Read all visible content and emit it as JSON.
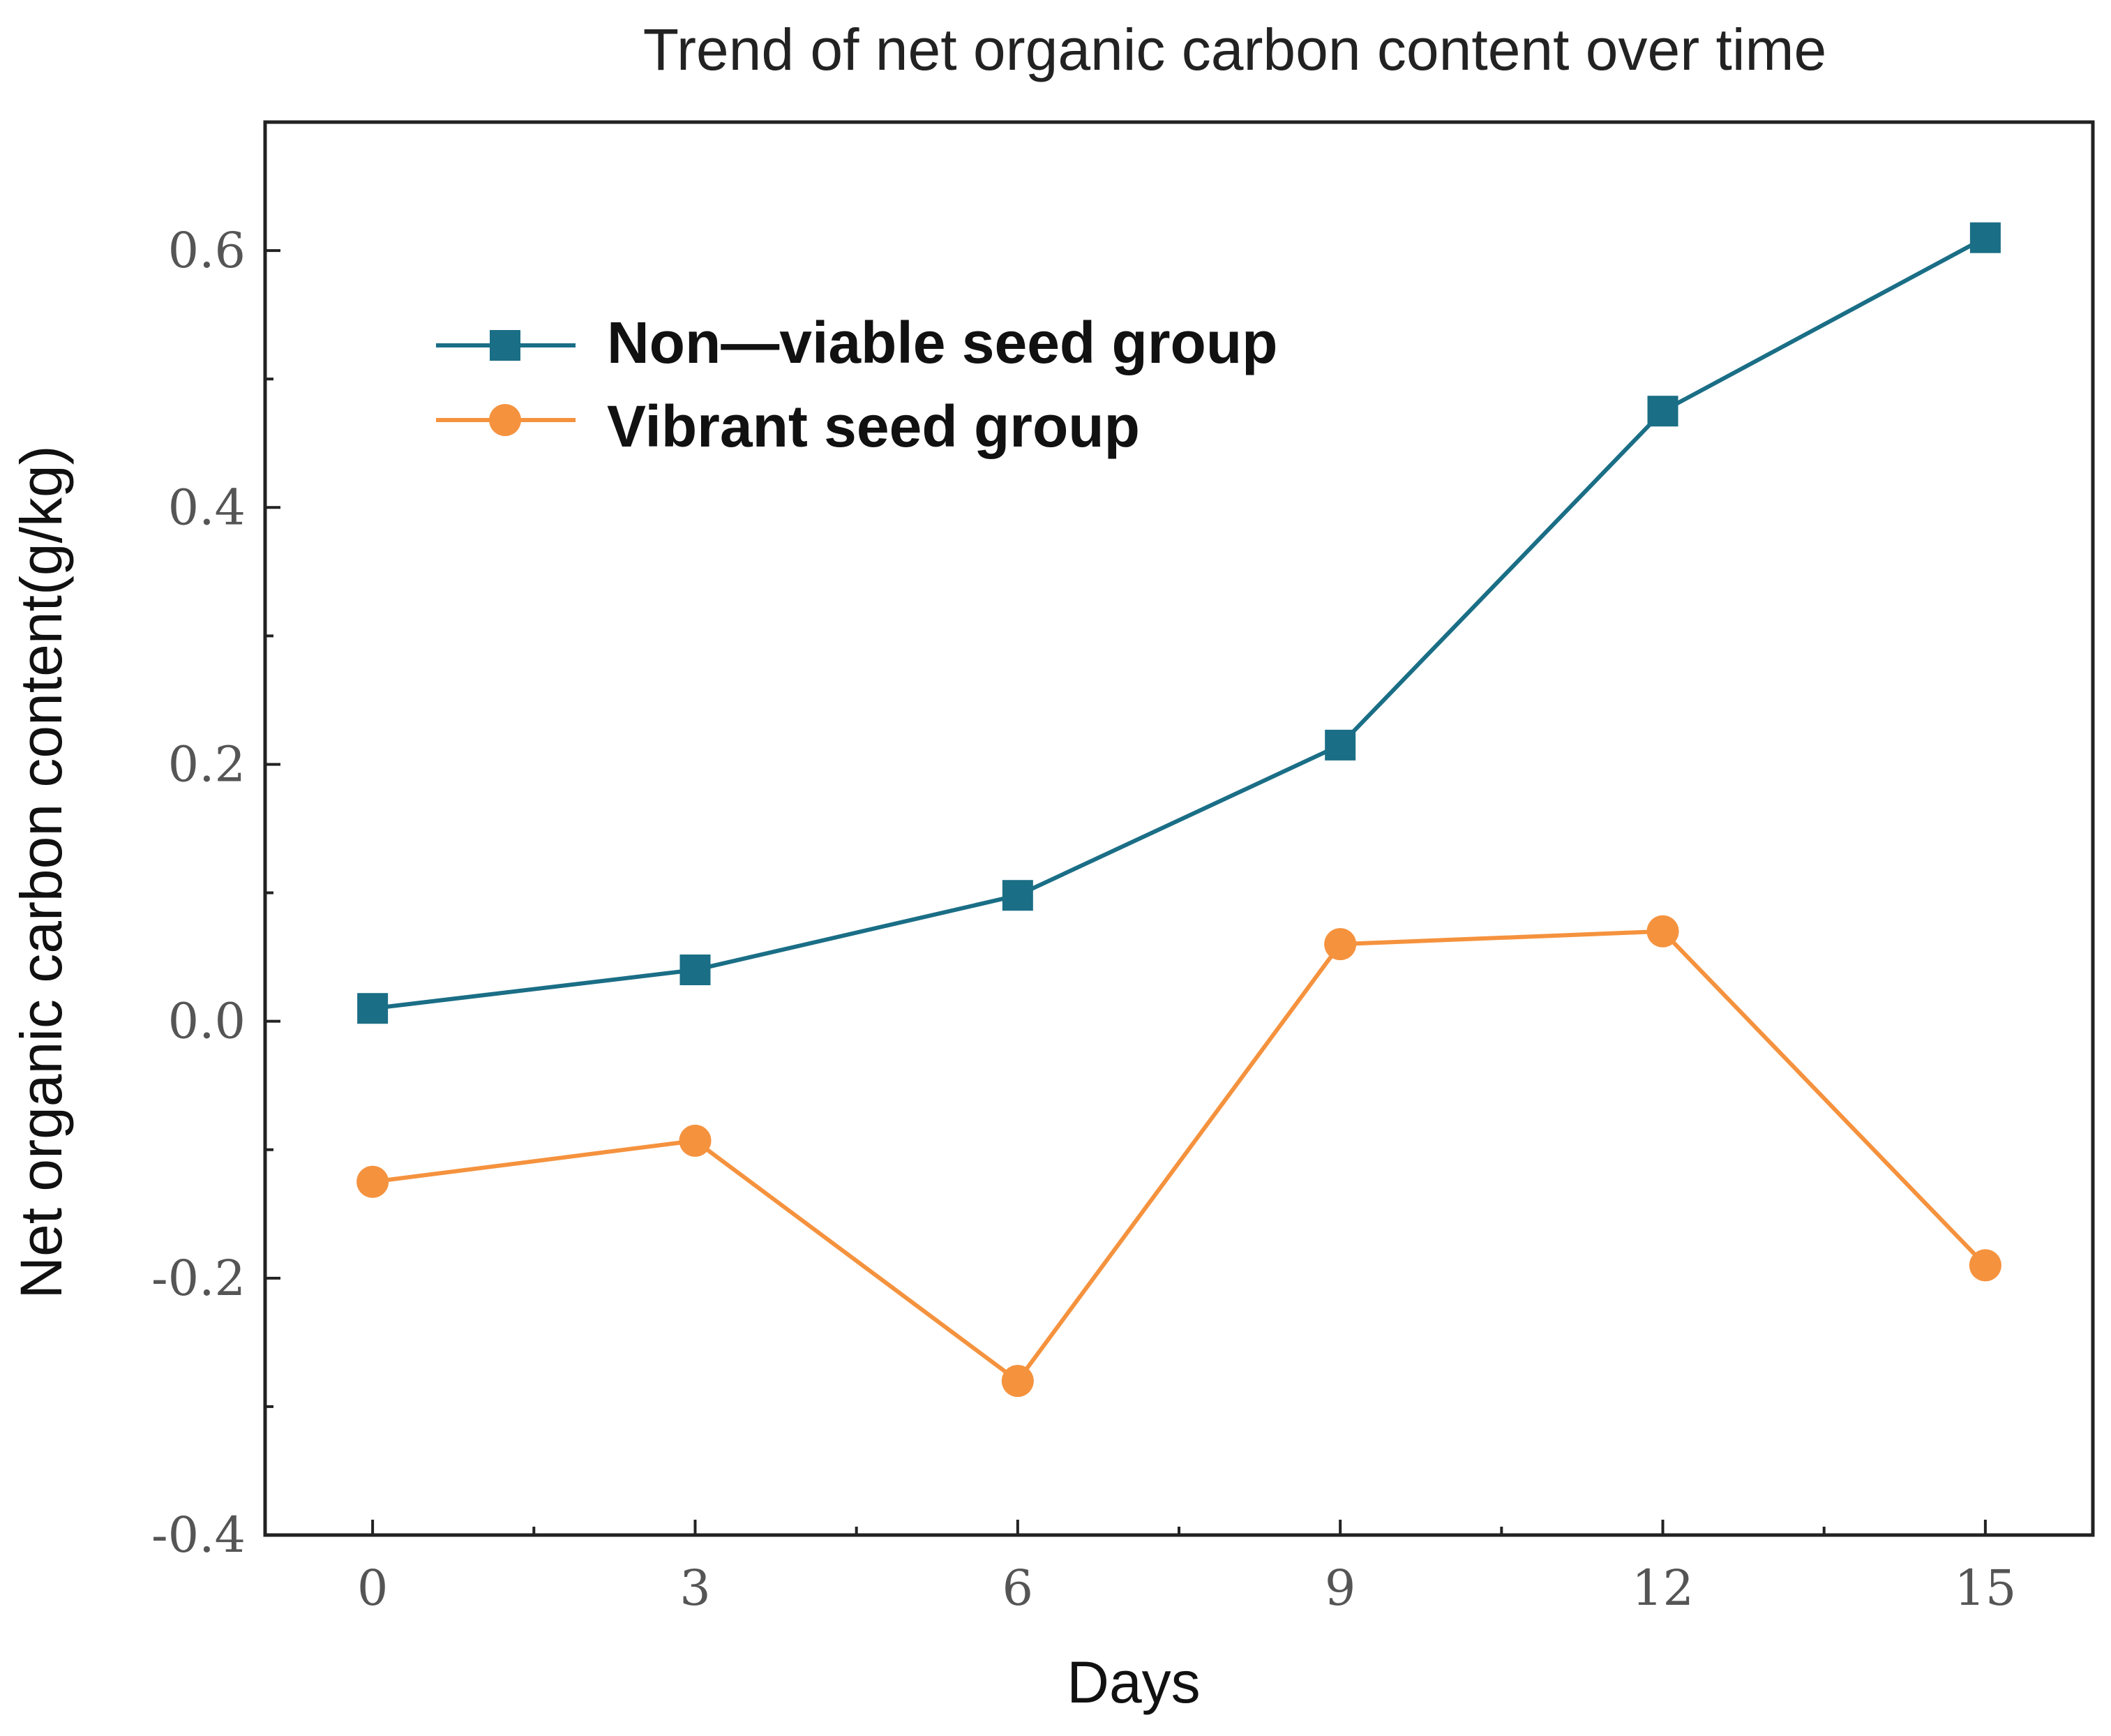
{
  "chart_data": {
    "type": "line",
    "title": "Trend of net organic carbon content over time",
    "xlabel": "Days",
    "ylabel": "Net organic carbon content(g/kg)",
    "x": [
      0,
      3,
      6,
      9,
      12,
      15
    ],
    "x_tick_labels": [
      "0",
      "3",
      "6",
      "9",
      "12",
      "15"
    ],
    "xlim": [
      -1,
      16
    ],
    "ylim": [
      -0.4,
      0.7
    ],
    "y_ticks": [
      -0.4,
      -0.2,
      0.0,
      0.2,
      0.4,
      0.6
    ],
    "y_tick_labels": [
      "-0.4",
      "-0.2",
      "0.0",
      "0.2",
      "0.4",
      "0.6"
    ],
    "grid": false,
    "legend_position": "top-left",
    "series": [
      {
        "name": "Non—viable seed group",
        "marker": "square",
        "color": "#1a6e86",
        "values": [
          0.01,
          0.04,
          0.098,
          0.215,
          0.475,
          0.61
        ]
      },
      {
        "name": "Vibrant seed group",
        "marker": "circle",
        "color": "#f5923e",
        "values": [
          -0.125,
          -0.093,
          -0.28,
          0.06,
          0.07,
          -0.19
        ]
      }
    ]
  }
}
